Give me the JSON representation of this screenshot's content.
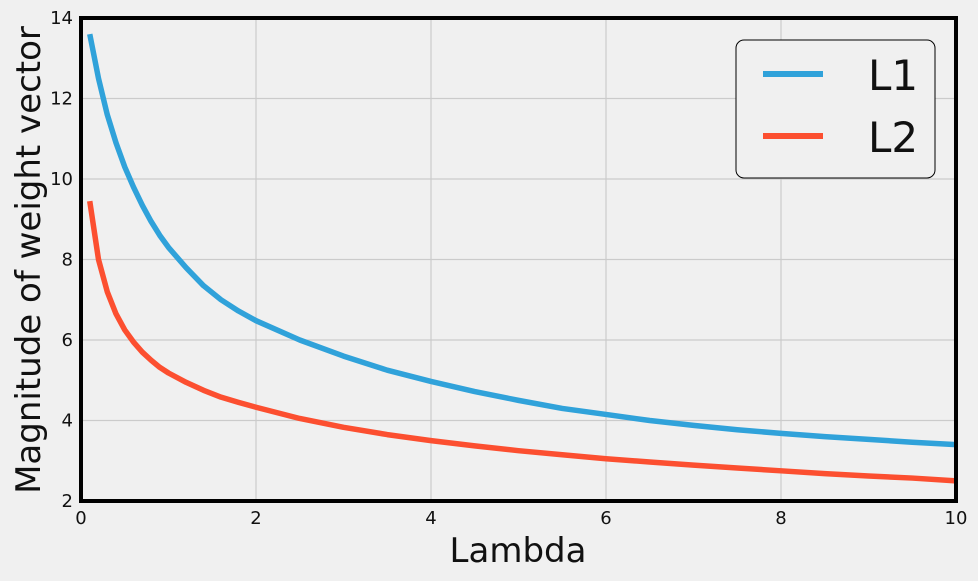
{
  "chart_data": {
    "type": "line",
    "title": "",
    "xlabel": "Lambda",
    "ylabel": "Magnitude of weight vector",
    "xlim": [
      0,
      10
    ],
    "ylim": [
      2,
      14
    ],
    "xticks": [
      0,
      2,
      4,
      6,
      8,
      10
    ],
    "yticks": [
      2,
      4,
      6,
      8,
      10,
      12,
      14
    ],
    "grid": true,
    "legend_position": "top-right",
    "x": [
      0.1,
      0.2,
      0.3,
      0.4,
      0.5,
      0.6,
      0.7,
      0.8,
      0.9,
      1.0,
      1.2,
      1.4,
      1.6,
      1.8,
      2.0,
      2.5,
      3.0,
      3.5,
      4.0,
      4.5,
      5.0,
      5.5,
      6.0,
      6.5,
      7.0,
      7.5,
      8.0,
      8.5,
      9.0,
      9.5,
      10.0
    ],
    "series": [
      {
        "name": "L1",
        "color": "#30a2da",
        "values": [
          13.6,
          12.5,
          11.6,
          10.9,
          10.3,
          9.8,
          9.35,
          8.95,
          8.6,
          8.3,
          7.8,
          7.35,
          7.0,
          6.72,
          6.48,
          6.0,
          5.6,
          5.25,
          4.97,
          4.72,
          4.5,
          4.3,
          4.15,
          4.0,
          3.88,
          3.77,
          3.68,
          3.6,
          3.53,
          3.46,
          3.4
        ]
      },
      {
        "name": "L2",
        "color": "#fc4f30",
        "values": [
          9.45,
          8.0,
          7.2,
          6.65,
          6.25,
          5.95,
          5.7,
          5.5,
          5.32,
          5.18,
          4.95,
          4.75,
          4.58,
          4.45,
          4.33,
          4.05,
          3.83,
          3.65,
          3.5,
          3.37,
          3.25,
          3.15,
          3.05,
          2.97,
          2.89,
          2.82,
          2.75,
          2.68,
          2.62,
          2.57,
          2.5
        ]
      }
    ]
  }
}
